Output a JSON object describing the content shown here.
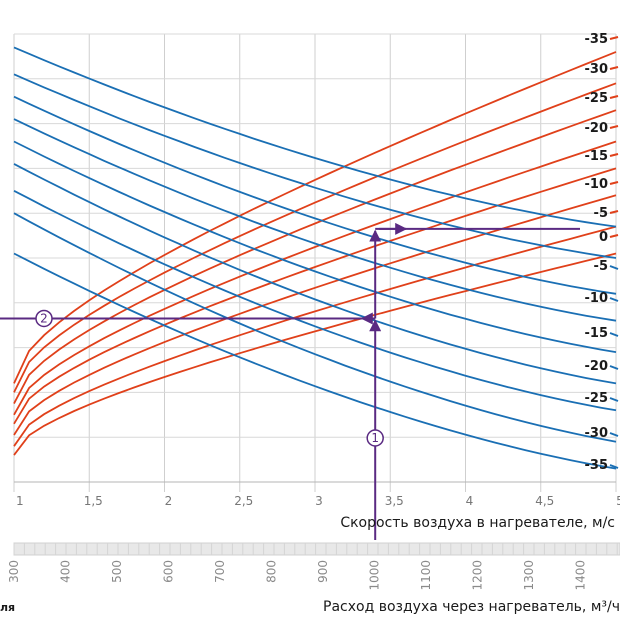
{
  "chart_data": {
    "type": "line",
    "x_axis": {
      "label": "Скорость воздуха в нагревателе, м/с",
      "range": [
        1,
        5
      ],
      "tick_values": [
        1,
        1.5,
        2,
        2.5,
        3,
        3.5,
        4,
        4.5,
        5
      ],
      "tick_labels": [
        "1",
        "1,5",
        "2",
        "2,5",
        "3",
        "3,5",
        "4",
        "4,5",
        "5"
      ]
    },
    "secondary_axis": {
      "label": "Расход воздуха через нагреватель, м³/ч",
      "ticks": [
        "300",
        "400",
        "500",
        "600",
        "700",
        "800",
        "900",
        "1000",
        "1100",
        "1200",
        "1300",
        "1400"
      ]
    },
    "left_cut_label": "ля",
    "grid": true,
    "series_groups": [
      {
        "color": "#e0401a",
        "labels": [
          "-35",
          "-30",
          "-25",
          "-20",
          "-15",
          "-10",
          "-5",
          "0"
        ],
        "curves": [
          {
            "label": "-35",
            "y_at_x1": 22,
            "y_at_x5": 96
          },
          {
            "label": "-30",
            "y_at_x1": 20,
            "y_at_x5": 89
          },
          {
            "label": "-25",
            "y_at_x1": 17.5,
            "y_at_x5": 83
          },
          {
            "label": "-20",
            "y_at_x1": 15,
            "y_at_x5": 76
          },
          {
            "label": "-15",
            "y_at_x1": 13,
            "y_at_x5": 70
          },
          {
            "label": "-10",
            "y_at_x1": 10.5,
            "y_at_x5": 64
          },
          {
            "label": "-5",
            "y_at_x1": 8,
            "y_at_x5": 57
          },
          {
            "label": "0",
            "y_at_x1": 6,
            "y_at_x5": 51
          }
        ]
      },
      {
        "color": "#1a6fb4",
        "labels": [
          "-5",
          "-10",
          "-15",
          "-20",
          "-25",
          "-30",
          "-35"
        ],
        "curves": [
          {
            "label": "-5",
            "y_at_x1": 97,
            "y_at_x5": 57
          },
          {
            "label": "-10",
            "y_at_x1": 91,
            "y_at_x5": 50
          },
          {
            "label": "-15",
            "y_at_x1": 86,
            "y_at_x5": 42
          },
          {
            "label": "-20",
            "y_at_x1": 81,
            "y_at_x5": 36
          },
          {
            "label": "-25",
            "y_at_x1": 76,
            "y_at_x5": 29
          },
          {
            "label": "-30",
            "y_at_x1": 71,
            "y_at_x5": 22
          },
          {
            "label": "-35",
            "y_at_x1": 65,
            "y_at_x5": 16
          },
          {
            "label": "",
            "y_at_x1": 60,
            "y_at_x5": 9
          },
          {
            "label": "",
            "y_at_x1": 51,
            "y_at_x5": 3
          }
        ]
      }
    ],
    "example_path": {
      "color": "#5a2a82",
      "markers": [
        "1",
        "2"
      ],
      "x_value": 3.4,
      "y_intersection_low": 36.5,
      "y_intersection_high": 56.5
    },
    "y_range": [
      0,
      100
    ]
  }
}
